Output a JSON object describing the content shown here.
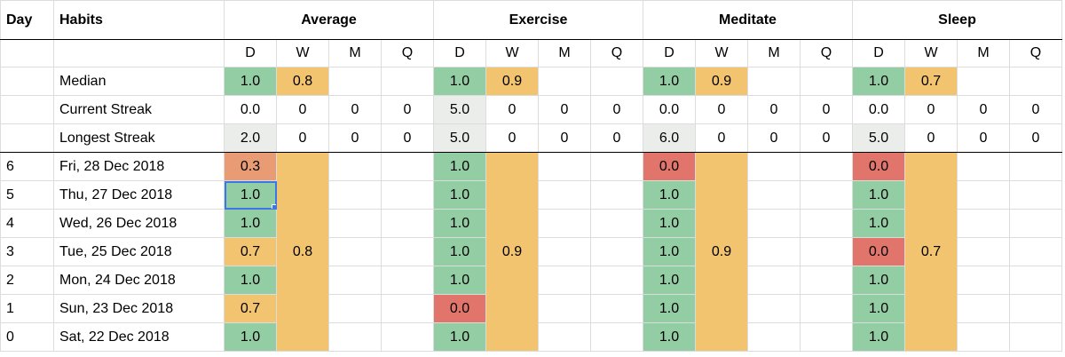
{
  "colors": {
    "green": "#93cda4",
    "orange": "#f3c46f",
    "red": "#e2756b",
    "salmon": "#e99c74",
    "grey": "#ebedeb",
    "selection": "#3b78e7"
  },
  "headers": {
    "day": "Day",
    "habits": "Habits",
    "groups": [
      "Average",
      "Exercise",
      "Meditate",
      "Sleep"
    ]
  },
  "periods": [
    "D",
    "W",
    "M",
    "Q"
  ],
  "stats": [
    {
      "label": "Median",
      "groups": [
        [
          "1.0",
          "0.8",
          "",
          ""
        ],
        [
          "1.0",
          "0.9",
          "",
          ""
        ],
        [
          "1.0",
          "0.9",
          "",
          ""
        ],
        [
          "1.0",
          "0.7",
          "",
          ""
        ]
      ]
    },
    {
      "label": "Current Streak",
      "groups": [
        [
          "0.0",
          "0",
          "0",
          "0"
        ],
        [
          "5.0",
          "0",
          "0",
          "0"
        ],
        [
          "0.0",
          "0",
          "0",
          "0"
        ],
        [
          "0.0",
          "0",
          "0",
          "0"
        ]
      ]
    },
    {
      "label": "Longest Streak",
      "groups": [
        [
          "2.0",
          "0",
          "0",
          "0"
        ],
        [
          "5.0",
          "0",
          "0",
          "0"
        ],
        [
          "6.0",
          "0",
          "0",
          "0"
        ],
        [
          "5.0",
          "0",
          "0",
          "0"
        ]
      ]
    }
  ],
  "weekly": [
    "0.8",
    "0.9",
    "0.9",
    "0.7"
  ],
  "rows": [
    {
      "day": "6",
      "date": "Fri, 28 Dec 2018",
      "values": [
        "0.3",
        "1.0",
        "0.0",
        "0.0"
      ]
    },
    {
      "day": "5",
      "date": "Thu, 27 Dec 2018",
      "values": [
        "1.0",
        "1.0",
        "1.0",
        "1.0"
      ]
    },
    {
      "day": "4",
      "date": "Wed, 26 Dec 2018",
      "values": [
        "1.0",
        "1.0",
        "1.0",
        "1.0"
      ]
    },
    {
      "day": "3",
      "date": "Tue, 25 Dec 2018",
      "values": [
        "0.7",
        "1.0",
        "1.0",
        "0.0"
      ]
    },
    {
      "day": "2",
      "date": "Mon, 24 Dec 2018",
      "values": [
        "1.0",
        "1.0",
        "1.0",
        "1.0"
      ]
    },
    {
      "day": "1",
      "date": "Sun, 23 Dec 2018",
      "values": [
        "0.7",
        "0.0",
        "1.0",
        "1.0"
      ]
    },
    {
      "day": "0",
      "date": "Sat, 22 Dec 2018",
      "values": [
        "1.0",
        "1.0",
        "1.0",
        "1.0"
      ]
    }
  ]
}
